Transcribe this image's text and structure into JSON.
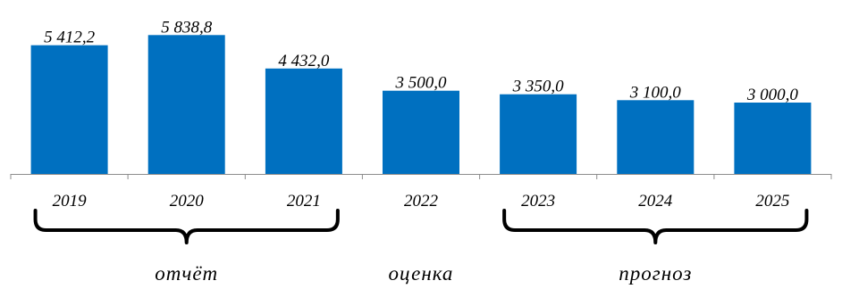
{
  "chart_data": {
    "type": "bar",
    "categories": [
      "2019",
      "2020",
      "2021",
      "2022",
      "2023",
      "2024",
      "2025"
    ],
    "values": [
      5412.2,
      5838.8,
      4432.0,
      3500.0,
      3350.0,
      3100.0,
      3000.0
    ],
    "value_labels": [
      "5 412,2",
      "5 838,8",
      "4 432,0",
      "3 500,0",
      "3 350,0",
      "3 100,0",
      "3 000,0"
    ],
    "title": "",
    "xlabel": "",
    "ylabel": "",
    "ylim": [
      0,
      6000
    ],
    "grid": false,
    "bar_color": "#0070C0",
    "groups": [
      {
        "label": "отчёт",
        "from": 0,
        "to": 2
      },
      {
        "label": "оценка",
        "from": 3,
        "to": 3
      },
      {
        "label": "прогноз",
        "from": 4,
        "to": 6
      }
    ]
  }
}
